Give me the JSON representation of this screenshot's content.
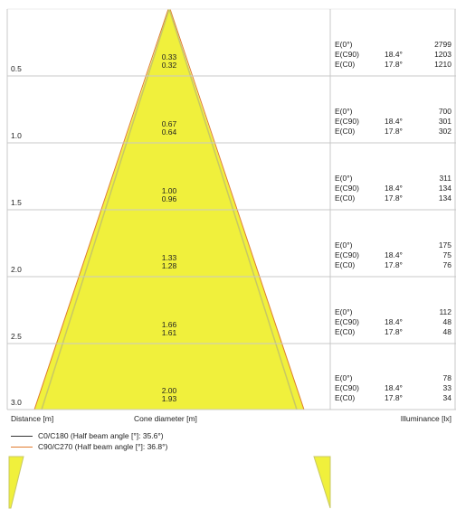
{
  "rows": [
    {
      "distance": "0.5",
      "d_c90": "0.33",
      "d_c0": "0.32",
      "e0_label": "E(0°)",
      "e0": "2799",
      "ec90_label": "E(C90)",
      "ec90_angle": "18.4°",
      "ec90": "1203",
      "ec0_label": "E(C0)",
      "ec0_angle": "17.8°",
      "ec0": "1210"
    },
    {
      "distance": "1.0",
      "d_c90": "0.67",
      "d_c0": "0.64",
      "e0_label": "E(0°)",
      "e0": "700",
      "ec90_label": "E(C90)",
      "ec90_angle": "18.4°",
      "ec90": "301",
      "ec0_label": "E(C0)",
      "ec0_angle": "17.8°",
      "ec0": "302"
    },
    {
      "distance": "1.5",
      "d_c90": "1.00",
      "d_c0": "0.96",
      "e0_label": "E(0°)",
      "e0": "311",
      "ec90_label": "E(C90)",
      "ec90_angle": "18.4°",
      "ec90": "134",
      "ec0_label": "E(C0)",
      "ec0_angle": "17.8°",
      "ec0": "134"
    },
    {
      "distance": "2.0",
      "d_c90": "1.33",
      "d_c0": "1.28",
      "e0_label": "E(0°)",
      "e0": "175",
      "ec90_label": "E(C90)",
      "ec90_angle": "18.4°",
      "ec90": "75",
      "ec0_label": "E(C0)",
      "ec0_angle": "17.8°",
      "ec0": "76"
    },
    {
      "distance": "2.5",
      "d_c90": "1.66",
      "d_c0": "1.61",
      "e0_label": "E(0°)",
      "e0": "112",
      "ec90_label": "E(C90)",
      "ec90_angle": "18.4°",
      "ec90": "48",
      "ec0_label": "E(C0)",
      "ec0_angle": "17.8°",
      "ec0": "48"
    },
    {
      "distance": "3.0",
      "d_c90": "2.00",
      "d_c0": "1.93",
      "e0_label": "E(0°)",
      "e0": "78",
      "ec90_label": "E(C90)",
      "ec90_angle": "18.4°",
      "ec90": "33",
      "ec0_label": "E(C0)",
      "ec0_angle": "17.8°",
      "ec0": "34"
    }
  ],
  "footer": {
    "distance_label": "Distance [m]",
    "cone_label": "Cone diameter [m]",
    "illuminance_label": "Illuminance [lx]"
  },
  "legend": [
    {
      "text": "C0/C180 (Half beam angle [°]: 35.6°)",
      "color": "#333333"
    },
    {
      "text": "C90/C270 (Half beam angle [°]: 36.8°)",
      "color": "#e07a2c"
    }
  ],
  "colors": {
    "cone_fill": "#f0f03c",
    "cone_edge": "#c8c864",
    "grid": "#c8c8c8"
  }
}
